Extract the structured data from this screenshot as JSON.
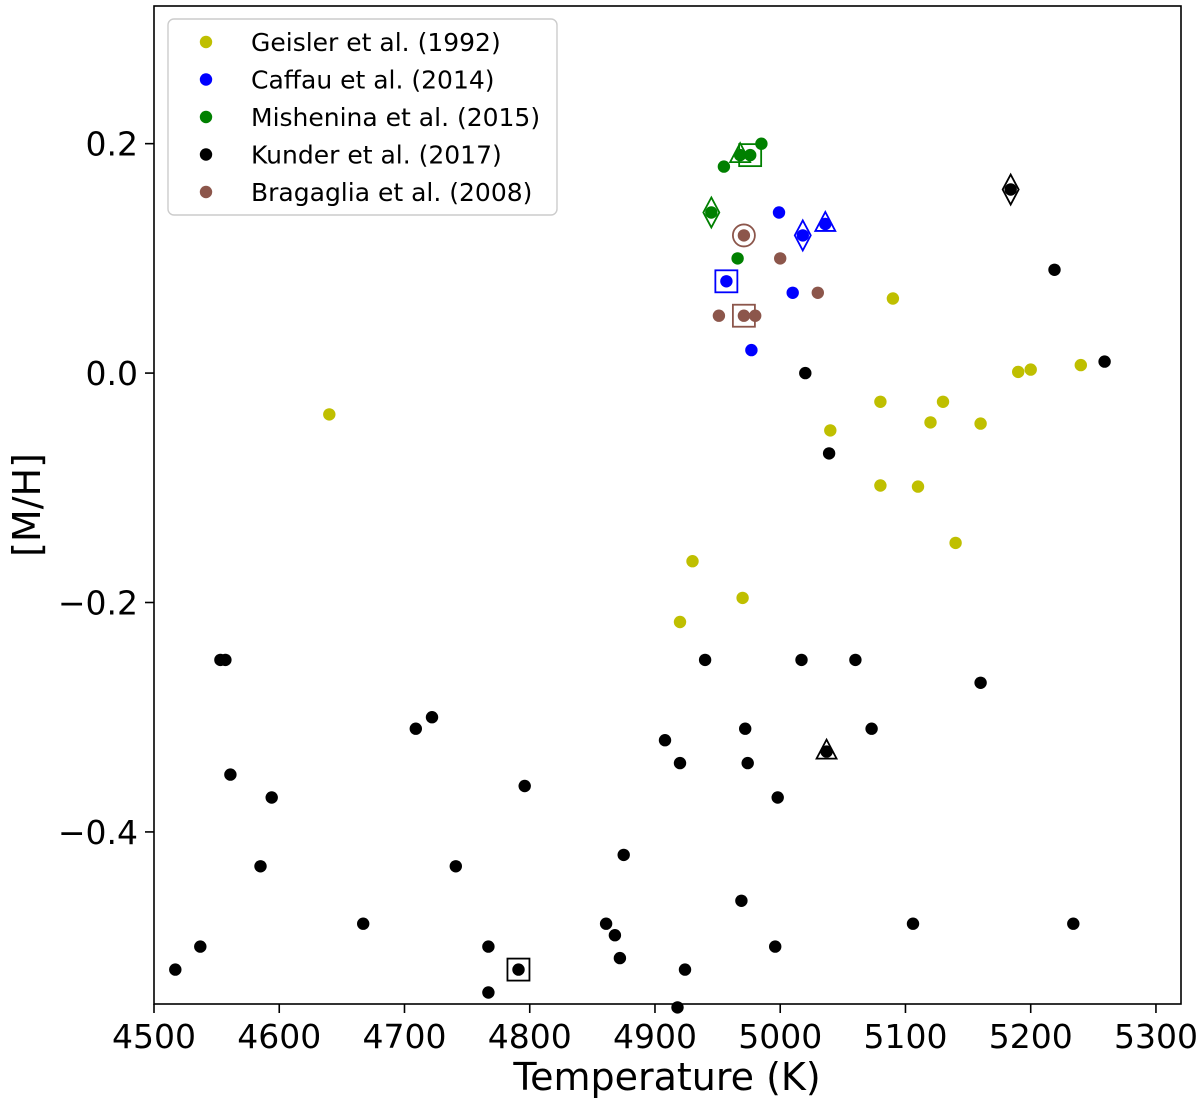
{
  "chart_data": {
    "type": "scatter",
    "xlabel": "Temperature (K)",
    "ylabel": "[M/H]",
    "xlim": [
      4500,
      5320
    ],
    "ylim": [
      -0.55,
      0.32
    ],
    "x_ticks": [
      4500,
      4600,
      4700,
      4800,
      4900,
      5000,
      5100,
      5200,
      5300
    ],
    "y_ticks": [
      -0.4,
      -0.2,
      0.0,
      0.2
    ],
    "x_tick_labels": [
      "4500",
      "4600",
      "4700",
      "4800",
      "4900",
      "5000",
      "5100",
      "5200",
      "5300"
    ],
    "y_tick_labels": [
      "−0.4",
      "−0.2",
      "0.0",
      "0.2"
    ],
    "grid": false,
    "legend_position": "top-left",
    "series": [
      {
        "name": "Geisler et al. (1992)",
        "color": "#bfbf00",
        "points": [
          [
            4640,
            -0.036
          ],
          [
            4920,
            -0.217
          ],
          [
            4930,
            -0.164
          ],
          [
            4970,
            -0.196
          ],
          [
            5040,
            -0.05
          ],
          [
            5080,
            -0.025
          ],
          [
            5080,
            -0.098
          ],
          [
            5090,
            0.065
          ],
          [
            5110,
            -0.099
          ],
          [
            5120,
            -0.043
          ],
          [
            5130,
            -0.025
          ],
          [
            5140,
            -0.148
          ],
          [
            5160,
            -0.044
          ],
          [
            5190,
            0.001
          ],
          [
            5200,
            0.003
          ],
          [
            5240,
            0.007
          ]
        ]
      },
      {
        "name": "Caffau et al. (2014)",
        "color": "#0000ff",
        "points": [
          [
            4957,
            0.08
          ],
          [
            4977,
            0.02
          ],
          [
            4999,
            0.14
          ],
          [
            5010,
            0.07
          ],
          [
            5018,
            0.12
          ],
          [
            5036,
            0.13
          ]
        ]
      },
      {
        "name": "Mishenina et al. (2015)",
        "color": "#008000",
        "points": [
          [
            4945,
            0.14
          ],
          [
            4955,
            0.18
          ],
          [
            4966,
            0.1
          ],
          [
            4968,
            0.19
          ],
          [
            4976,
            0.19
          ],
          [
            4985,
            0.2
          ]
        ]
      },
      {
        "name": "Kunder et al. (2017)",
        "color": "#000000",
        "points": [
          [
            4517,
            -0.52
          ],
          [
            4537,
            -0.5
          ],
          [
            4553,
            -0.25
          ],
          [
            4557,
            -0.25
          ],
          [
            4561,
            -0.35
          ],
          [
            4585,
            -0.43
          ],
          [
            4594,
            -0.37
          ],
          [
            4667,
            -0.48
          ],
          [
            4709,
            -0.31
          ],
          [
            4722,
            -0.3
          ],
          [
            4741,
            -0.43
          ],
          [
            4767,
            -0.5
          ],
          [
            4767,
            -0.54
          ],
          [
            4791,
            -0.52
          ],
          [
            4796,
            -0.36
          ],
          [
            4861,
            -0.48
          ],
          [
            4868,
            -0.49
          ],
          [
            4872,
            -0.51
          ],
          [
            4875,
            -0.42
          ],
          [
            4908,
            -0.32
          ],
          [
            4918,
            -0.553
          ],
          [
            4920,
            -0.34
          ],
          [
            4924,
            -0.52
          ],
          [
            4940,
            -0.25
          ],
          [
            4969,
            -0.46
          ],
          [
            4972,
            -0.31
          ],
          [
            4974,
            -0.34
          ],
          [
            4996,
            -0.5
          ],
          [
            4998,
            -0.37
          ],
          [
            5017,
            -0.25
          ],
          [
            5020,
            0.0
          ],
          [
            5037,
            -0.33
          ],
          [
            5039,
            -0.07
          ],
          [
            5060,
            -0.25
          ],
          [
            5073,
            -0.31
          ],
          [
            5106,
            -0.48
          ],
          [
            5160,
            -0.27
          ],
          [
            5184,
            0.16
          ],
          [
            5219,
            0.09
          ],
          [
            5234,
            -0.48
          ],
          [
            5259,
            0.01
          ]
        ]
      },
      {
        "name": "Bragaglia et al. (2008)",
        "color": "#8c564b",
        "points": [
          [
            4951,
            0.05
          ],
          [
            4971,
            0.12
          ],
          [
            4971,
            0.05
          ],
          [
            4980,
            0.05
          ],
          [
            5000,
            0.1
          ],
          [
            5030,
            0.07
          ]
        ]
      }
    ],
    "highlights": [
      {
        "marker": "square",
        "x": 4957,
        "y": 0.08,
        "color": "#0000ff"
      },
      {
        "marker": "diamond",
        "x": 5018,
        "y": 0.12,
        "color": "#0000ff"
      },
      {
        "marker": "triangle",
        "x": 5036,
        "y": 0.13,
        "color": "#0000ff"
      },
      {
        "marker": "square",
        "x": 4976,
        "y": 0.19,
        "color": "#008000"
      },
      {
        "marker": "triangle",
        "x": 4968,
        "y": 0.19,
        "color": "#008000"
      },
      {
        "marker": "diamond",
        "x": 4945,
        "y": 0.14,
        "color": "#008000"
      },
      {
        "marker": "diamond",
        "x": 5184,
        "y": 0.16,
        "color": "#000000"
      },
      {
        "marker": "triangle",
        "x": 5037,
        "y": -0.33,
        "color": "#000000"
      },
      {
        "marker": "square",
        "x": 4791,
        "y": -0.52,
        "color": "#000000"
      },
      {
        "marker": "circle",
        "x": 4971,
        "y": 0.12,
        "color": "#8c564b"
      },
      {
        "marker": "square",
        "x": 4971,
        "y": 0.05,
        "color": "#8c564b"
      }
    ]
  }
}
